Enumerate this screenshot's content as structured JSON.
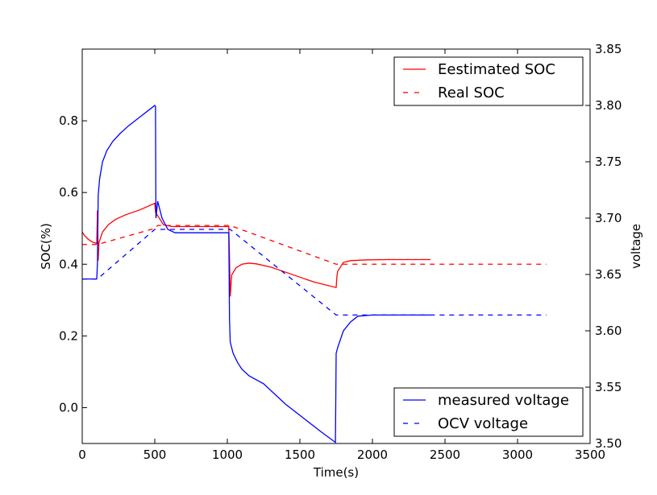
{
  "chart_data": {
    "type": "line",
    "xlabel": "Time(s)",
    "ylabel_left": "SOC(%)",
    "ylabel_right": "voltage",
    "xlim": [
      0,
      3500
    ],
    "ylim_left": [
      -0.1,
      1.0
    ],
    "ylim_right": [
      3.5,
      3.85
    ],
    "xticks": [
      0,
      500,
      1000,
      1500,
      2000,
      2500,
      3000,
      3500
    ],
    "xtick_labels": [
      "0",
      "500",
      "1000",
      "1500",
      "2000",
      "2500",
      "3000",
      "3500"
    ],
    "yticks_left": [
      0.0,
      0.2,
      0.4,
      0.6,
      0.8
    ],
    "ytick_labels_left": [
      "0.0",
      "0.2",
      "0.4",
      "0.6",
      "0.8"
    ],
    "yticks_right": [
      3.5,
      3.55,
      3.6,
      3.65,
      3.7,
      3.75,
      3.8,
      3.85
    ],
    "ytick_labels_right": [
      "3.50",
      "3.55",
      "3.60",
      "3.65",
      "3.70",
      "3.75",
      "3.80",
      "3.85"
    ],
    "grid": false,
    "legends": [
      {
        "placement": "top-right",
        "entries": [
          "Eestimated SOC",
          "Real SOC"
        ]
      },
      {
        "placement": "bottom-right",
        "entries": [
          "measured voltage",
          "OCV voltage"
        ]
      }
    ],
    "series": [
      {
        "name": "Eestimated SOC",
        "axis": "left",
        "color": "#ff0000",
        "dash": "solid",
        "points": [
          [
            0,
            0.49
          ],
          [
            15,
            0.48
          ],
          [
            40,
            0.47
          ],
          [
            70,
            0.462
          ],
          [
            100,
            0.458
          ],
          [
            105,
            0.55
          ],
          [
            110,
            0.41
          ],
          [
            115,
            0.46
          ],
          [
            140,
            0.49
          ],
          [
            180,
            0.51
          ],
          [
            230,
            0.525
          ],
          [
            300,
            0.538
          ],
          [
            400,
            0.552
          ],
          [
            500,
            0.57
          ],
          [
            505,
            0.545
          ],
          [
            560,
            0.51
          ],
          [
            620,
            0.505
          ],
          [
            700,
            0.505
          ],
          [
            800,
            0.505
          ],
          [
            900,
            0.505
          ],
          [
            1010,
            0.505
          ],
          [
            1015,
            0.415
          ],
          [
            1020,
            0.31
          ],
          [
            1030,
            0.37
          ],
          [
            1060,
            0.39
          ],
          [
            1100,
            0.4
          ],
          [
            1150,
            0.403
          ],
          [
            1200,
            0.401
          ],
          [
            1300,
            0.392
          ],
          [
            1400,
            0.378
          ],
          [
            1500,
            0.364
          ],
          [
            1600,
            0.35
          ],
          [
            1750,
            0.335
          ],
          [
            1755,
            0.365
          ],
          [
            1760,
            0.38
          ],
          [
            1800,
            0.405
          ],
          [
            1850,
            0.41
          ],
          [
            1950,
            0.412
          ],
          [
            2100,
            0.413
          ],
          [
            2250,
            0.413
          ],
          [
            2400,
            0.413
          ]
        ]
      },
      {
        "name": "Real SOC",
        "axis": "left",
        "color": "#ff0000",
        "dash": "dashed",
        "points": [
          [
            0,
            0.455
          ],
          [
            105,
            0.455
          ],
          [
            500,
            0.5
          ],
          [
            520,
            0.508
          ],
          [
            1020,
            0.508
          ],
          [
            1750,
            0.4
          ],
          [
            2400,
            0.4
          ],
          [
            3200,
            0.4
          ]
        ]
      },
      {
        "name": "measured voltage",
        "axis": "right",
        "color": "#0000ff",
        "dash": "solid",
        "points": [
          [
            0,
            3.646
          ],
          [
            100,
            3.646
          ],
          [
            105,
            3.66
          ],
          [
            110,
            3.72
          ],
          [
            120,
            3.735
          ],
          [
            140,
            3.75
          ],
          [
            170,
            3.76
          ],
          [
            210,
            3.768
          ],
          [
            260,
            3.775
          ],
          [
            320,
            3.782
          ],
          [
            400,
            3.79
          ],
          [
            480,
            3.798
          ],
          [
            500,
            3.8
          ],
          [
            505,
            3.799
          ],
          [
            508,
            3.7
          ],
          [
            520,
            3.715
          ],
          [
            550,
            3.7
          ],
          [
            590,
            3.69
          ],
          [
            640,
            3.687
          ],
          [
            700,
            3.687
          ],
          [
            800,
            3.687
          ],
          [
            900,
            3.687
          ],
          [
            1010,
            3.687
          ],
          [
            1015,
            3.61
          ],
          [
            1020,
            3.59
          ],
          [
            1040,
            3.58
          ],
          [
            1070,
            3.572
          ],
          [
            1100,
            3.566
          ],
          [
            1150,
            3.56
          ],
          [
            1250,
            3.553
          ],
          [
            1400,
            3.535
          ],
          [
            1550,
            3.52
          ],
          [
            1650,
            3.51
          ],
          [
            1745,
            3.501
          ],
          [
            1750,
            3.58
          ],
          [
            1760,
            3.585
          ],
          [
            1800,
            3.6
          ],
          [
            1850,
            3.608
          ],
          [
            1900,
            3.613
          ],
          [
            2000,
            3.614
          ],
          [
            2400,
            3.614
          ]
        ]
      },
      {
        "name": "OCV voltage",
        "axis": "right",
        "color": "#0000ff",
        "dash": "dashed",
        "points": [
          [
            0,
            3.646
          ],
          [
            105,
            3.646
          ],
          [
            500,
            3.69
          ],
          [
            520,
            3.69
          ],
          [
            1020,
            3.69
          ],
          [
            1750,
            3.614
          ],
          [
            2400,
            3.614
          ],
          [
            3200,
            3.614
          ]
        ]
      }
    ]
  }
}
